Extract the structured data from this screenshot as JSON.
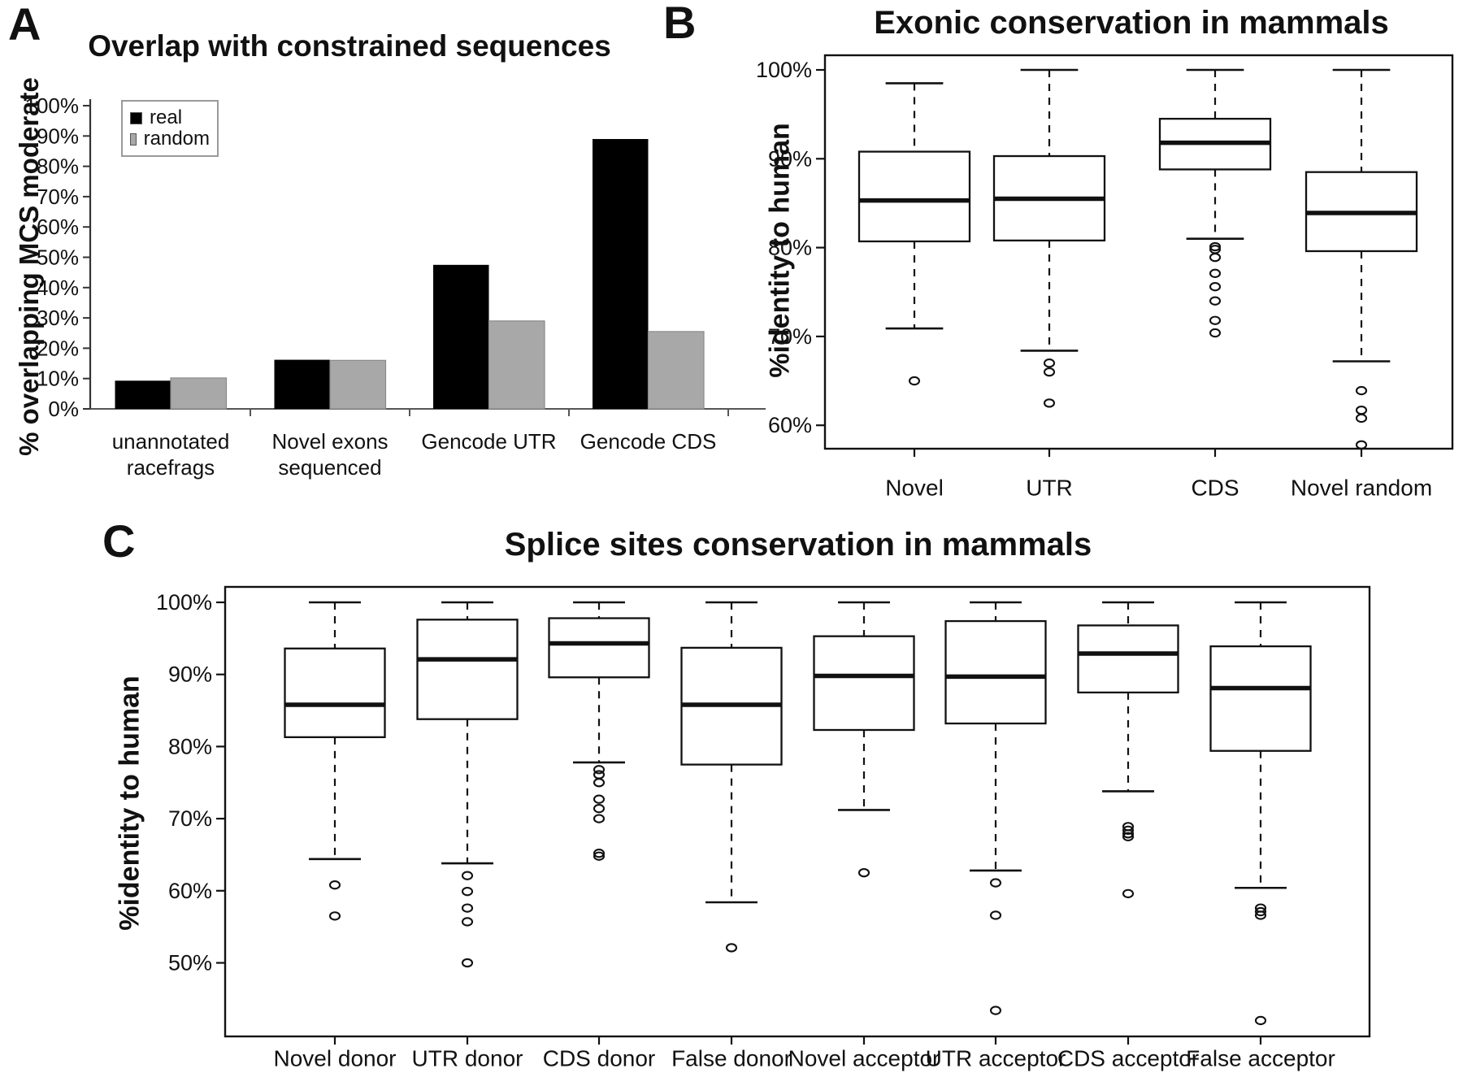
{
  "figure": {
    "background": "#ffffff",
    "text_color": "#111111"
  },
  "panels": {
    "A": {
      "letter": "A",
      "legend": {
        "items": [
          {
            "label": "real",
            "color": "#000000"
          },
          {
            "label": "random",
            "color": "#a8a8a8"
          }
        ]
      },
      "chart_data": {
        "type": "bar",
        "title": "Overlap with constrained sequences",
        "ylabel": "% overlapping MCS moderate",
        "xlabel": "",
        "categories": [
          "unannotated\nracefrags",
          "Novel exons\nsequenced",
          "Gencode UTR",
          "Gencode CDS"
        ],
        "series": [
          {
            "name": "real",
            "color": "#000000",
            "values": [
              9.3,
              16.2,
              47.5,
              89.0
            ]
          },
          {
            "name": "random",
            "color": "#a8a8a8",
            "values": [
              10.2,
              16.0,
              29.0,
              25.5
            ]
          }
        ],
        "ylim": [
          0,
          100
        ],
        "ytick_values": [
          0,
          10,
          20,
          30,
          40,
          50,
          60,
          70,
          80,
          90,
          100
        ],
        "ytick_suffix": "%",
        "grid": false,
        "legend_position": "upper-left"
      }
    },
    "B": {
      "letter": "B",
      "chart_data": {
        "type": "boxplot",
        "title": "Exonic conservation in mammals",
        "ylabel": "%identity to human",
        "ytick_values": [
          60,
          70,
          80,
          90,
          100
        ],
        "ytick_suffix": "%",
        "ylim": [
          56.5,
          101.8
        ],
        "grid": false,
        "boxes": [
          {
            "label": "Novel",
            "whisker_low": 70.9,
            "q1": 80.7,
            "median": 85.3,
            "q3": 90.8,
            "whisker_high": 98.5,
            "outliers": [
              65.0
            ]
          },
          {
            "label": "UTR",
            "whisker_low": 68.4,
            "q1": 80.8,
            "median": 85.5,
            "q3": 90.3,
            "whisker_high": 100.0,
            "outliers": [
              67.0,
              66.0,
              62.5
            ]
          },
          {
            "label": "CDS",
            "whisker_low": 81.0,
            "q1": 88.8,
            "median": 91.8,
            "q3": 94.5,
            "whisker_high": 100.0,
            "outliers": [
              80.1,
              79.8,
              78.9,
              77.1,
              75.6,
              74.0,
              71.8,
              70.4
            ]
          },
          {
            "label": "Novel random",
            "whisker_low": 67.2,
            "q1": 79.6,
            "median": 83.9,
            "q3": 88.5,
            "whisker_high": 100.0,
            "outliers": [
              63.9,
              61.7,
              60.8,
              57.8
            ]
          }
        ]
      }
    },
    "C": {
      "letter": "C",
      "chart_data": {
        "type": "boxplot",
        "title": "Splice sites conservation in mammals",
        "ylabel": "%identity to human",
        "ytick_values": [
          50,
          60,
          70,
          80,
          90,
          100
        ],
        "ytick_suffix": "%",
        "ylim": [
          40.5,
          102.0
        ],
        "grid": false,
        "boxes": [
          {
            "label": "Novel donor",
            "whisker_low": 64.4,
            "q1": 81.3,
            "median": 85.8,
            "q3": 93.6,
            "whisker_high": 100.0,
            "outliers": [
              60.8,
              56.5
            ]
          },
          {
            "label": "UTR donor",
            "whisker_low": 63.8,
            "q1": 83.8,
            "median": 92.1,
            "q3": 97.6,
            "whisker_high": 100.0,
            "outliers": [
              62.1,
              59.9,
              57.6,
              55.7,
              50.0
            ]
          },
          {
            "label": "CDS donor",
            "whisker_low": 77.8,
            "q1": 89.6,
            "median": 94.3,
            "q3": 97.8,
            "whisker_high": 100.0,
            "outliers": [
              76.8,
              76.1,
              75.0,
              72.7,
              71.4,
              70.0,
              65.2,
              64.8
            ]
          },
          {
            "label": "False donor",
            "whisker_low": 58.4,
            "q1": 77.5,
            "median": 85.8,
            "q3": 93.7,
            "whisker_high": 100.0,
            "outliers": [
              52.1
            ]
          },
          {
            "label": "Novel acceptor",
            "whisker_low": 71.2,
            "q1": 82.3,
            "median": 89.8,
            "q3": 95.3,
            "whisker_high": 100.0,
            "outliers": [
              62.5
            ]
          },
          {
            "label": "UTR acceptor",
            "whisker_low": 62.8,
            "q1": 83.2,
            "median": 89.7,
            "q3": 97.4,
            "whisker_high": 100.0,
            "outliers": [
              61.1,
              56.6,
              43.4
            ]
          },
          {
            "label": "CDS acceptor",
            "whisker_low": 73.8,
            "q1": 87.5,
            "median": 92.9,
            "q3": 96.8,
            "whisker_high": 100.0,
            "outliers": [
              68.9,
              68.4,
              67.9,
              67.5,
              59.6
            ]
          },
          {
            "label": "False acceptor",
            "whisker_low": 60.4,
            "q1": 79.4,
            "median": 88.1,
            "q3": 93.9,
            "whisker_high": 100.0,
            "outliers": [
              57.6,
              57.1,
              56.6,
              42.0
            ]
          }
        ]
      }
    }
  }
}
